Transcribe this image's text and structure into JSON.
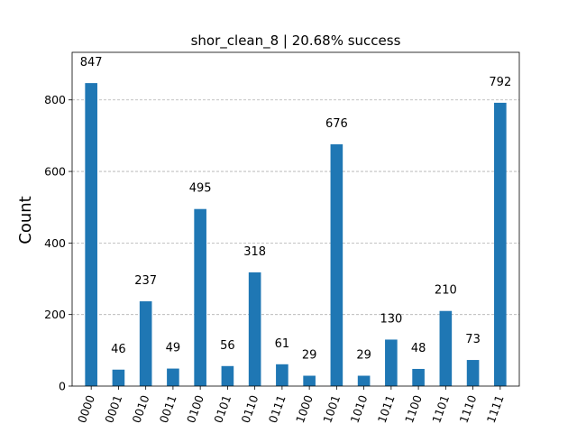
{
  "chart_data": {
    "type": "bar",
    "title": "shor_clean_8 | 20.68% success",
    "xlabel": "",
    "ylabel": "Count",
    "categories": [
      "0000",
      "0001",
      "0010",
      "0011",
      "0100",
      "0101",
      "0110",
      "0111",
      "1000",
      "1001",
      "1010",
      "1011",
      "1100",
      "1101",
      "1110",
      "1111"
    ],
    "values": [
      847,
      46,
      237,
      49,
      495,
      56,
      318,
      61,
      29,
      676,
      29,
      130,
      48,
      210,
      73,
      792
    ],
    "ylim": [
      0,
      933
    ],
    "yticks": [
      0,
      200,
      400,
      600,
      800
    ],
    "grid": "y-dashed",
    "bar_color": "#1f77b4",
    "grid_color": "#b0b0b0"
  }
}
